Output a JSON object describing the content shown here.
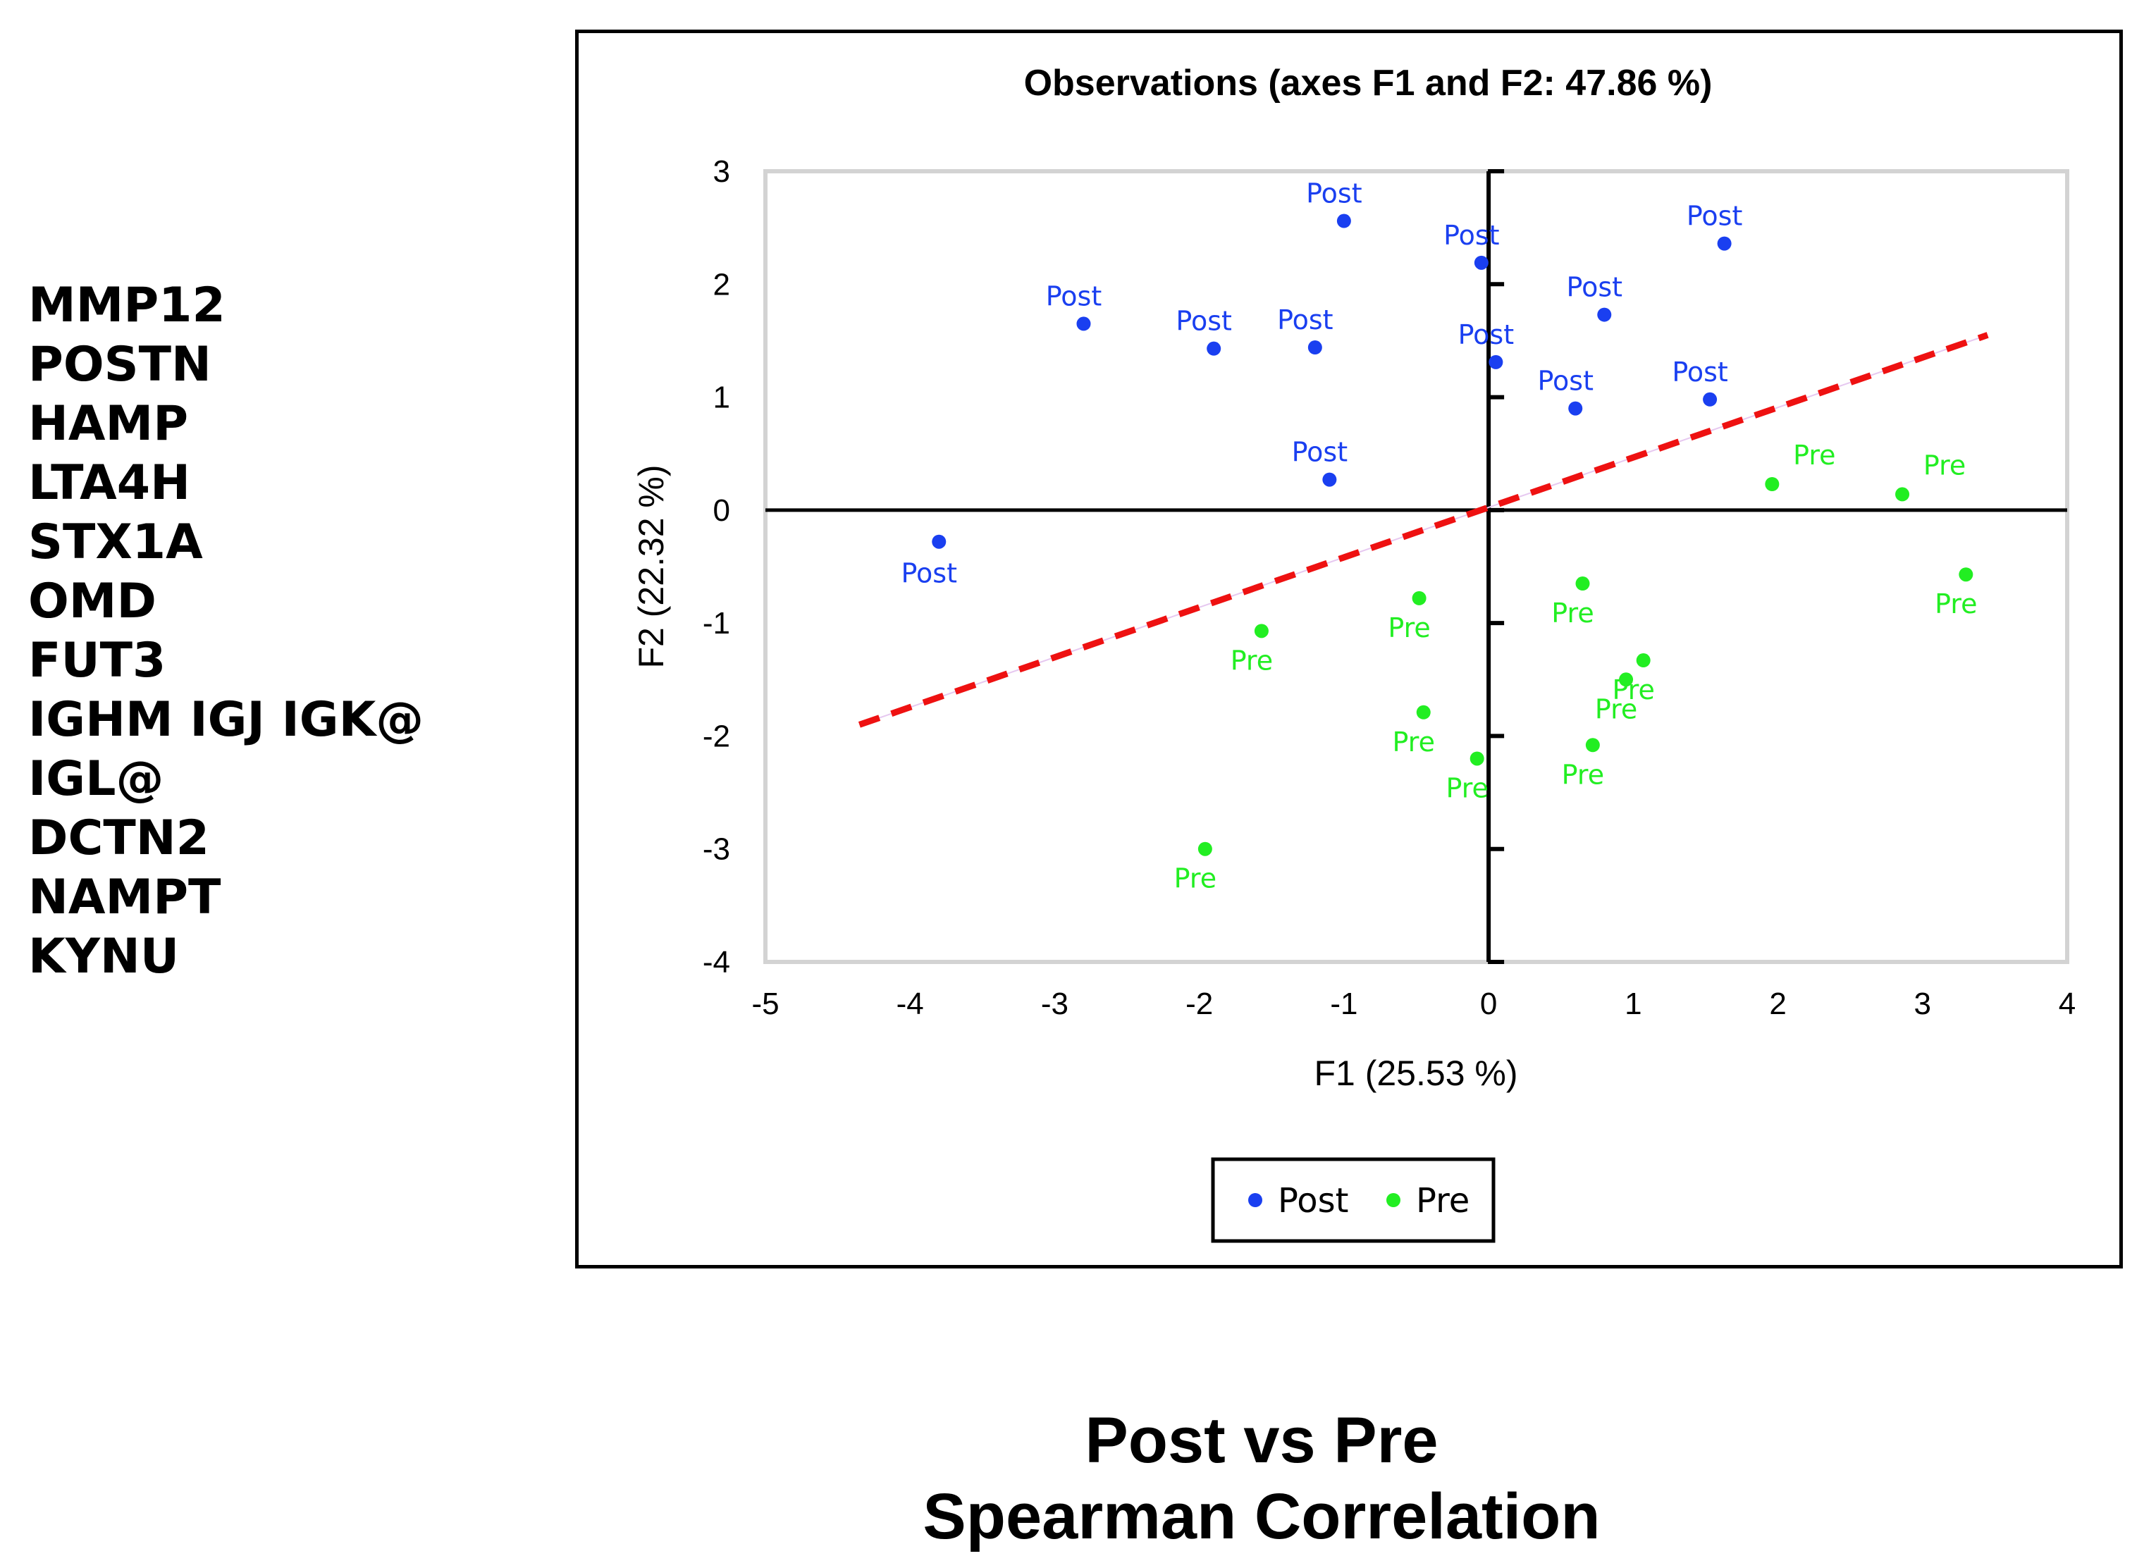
{
  "gene_list": [
    "MMP12",
    "POSTN",
    "HAMP",
    "LTA4H",
    "STX1A",
    "OMD",
    "FUT3",
    "IGHM IGJ IGK@",
    "IGL@",
    "DCTN2",
    "NAMPT",
    "KYNU"
  ],
  "caption": {
    "line1": "Post vs Pre",
    "line2": "Spearman Correlation"
  },
  "colors": {
    "post": "#1a3ff0",
    "pre": "#22ee22",
    "regression": "#ee1111",
    "axis": "#000000",
    "plot_border": "#d3d3d3"
  },
  "chart_data": {
    "type": "scatter",
    "title": "Observations (axes F1 and F2: 47.86 %)",
    "xlabel": "F1 (25.53 %)",
    "ylabel": "F2 (22.32 %)",
    "xlim": [
      -5,
      4
    ],
    "ylim": [
      -4,
      3
    ],
    "xticks": [
      -5,
      -4,
      -3,
      -2,
      -1,
      0,
      1,
      2,
      3,
      4
    ],
    "yticks": [
      -4,
      -3,
      -2,
      -1,
      0,
      1,
      2,
      3
    ],
    "legend": {
      "position": "bottom-center",
      "entries": [
        "Post",
        "Pre"
      ]
    },
    "series": [
      {
        "name": "Post",
        "points": [
          {
            "x": -3.8,
            "y": -0.28,
            "label": "Post"
          },
          {
            "x": -2.8,
            "y": 1.65,
            "label": "Post"
          },
          {
            "x": -1.9,
            "y": 1.43,
            "label": "Post"
          },
          {
            "x": -1.2,
            "y": 1.44,
            "label": "Post"
          },
          {
            "x": -1.0,
            "y": 2.56,
            "label": "Post"
          },
          {
            "x": -1.1,
            "y": 0.27,
            "label": "Post"
          },
          {
            "x": -0.05,
            "y": 2.19,
            "label": "Post"
          },
          {
            "x": 0.05,
            "y": 1.31,
            "label": "Post"
          },
          {
            "x": 0.8,
            "y": 1.73,
            "label": "Post"
          },
          {
            "x": 0.6,
            "y": 0.9,
            "label": "Post"
          },
          {
            "x": 1.63,
            "y": 2.36,
            "label": "Post"
          },
          {
            "x": 1.53,
            "y": 0.98,
            "label": "Post"
          }
        ]
      },
      {
        "name": "Pre",
        "points": [
          {
            "x": 1.96,
            "y": 0.23,
            "label": "Pre"
          },
          {
            "x": 2.86,
            "y": 0.14,
            "label": "Pre"
          },
          {
            "x": 3.3,
            "y": -0.57,
            "label": "Pre"
          },
          {
            "x": 0.65,
            "y": -0.65,
            "label": "Pre"
          },
          {
            "x": -0.48,
            "y": -0.78,
            "label": "Pre"
          },
          {
            "x": -1.57,
            "y": -1.07,
            "label": "Pre"
          },
          {
            "x": 1.07,
            "y": -1.33,
            "label": "Pre"
          },
          {
            "x": 0.95,
            "y": -1.5,
            "label": "Pre"
          },
          {
            "x": -0.45,
            "y": -1.79,
            "label": "Pre"
          },
          {
            "x": 0.72,
            "y": -2.08,
            "label": "Pre"
          },
          {
            "x": -0.08,
            "y": -2.2,
            "label": "Pre"
          },
          {
            "x": -1.96,
            "y": -3.0,
            "label": "Pre"
          }
        ]
      }
    ],
    "regression_line": {
      "x1": -4.35,
      "y1": -1.9,
      "x2": 3.45,
      "y2": 1.55,
      "style": "dashed"
    }
  }
}
